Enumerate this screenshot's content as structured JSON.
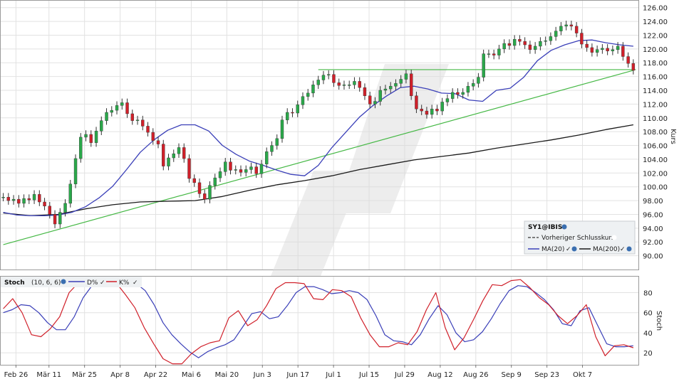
{
  "chart_data": [
    {
      "type": "candlestick",
      "title": "SY1@IBIS",
      "ylabel": "Kurs",
      "ylim": [
        88,
        127
      ],
      "y_ticks": [
        "90.00",
        "92.00",
        "94.00",
        "96.00",
        "98.00",
        "100.00",
        "102.00",
        "104.00",
        "106.00",
        "108.00",
        "110.00",
        "112.00",
        "114.00",
        "116.00",
        "118.00",
        "120.00",
        "122.00",
        "124.00",
        "126.00"
      ],
      "x_ticks": [
        "Feb 26",
        "Mär 11",
        "Mär 25",
        "Apr 8",
        "Apr 22",
        "Mai 6",
        "Mai 20",
        "Jun 3",
        "Jun 17",
        "Jul 1",
        "Jul 15",
        "Jul 29",
        "Aug 12",
        "Aug 26",
        "Sep 9",
        "Sep 23",
        "Okt 7"
      ],
      "x_tick_days": [
        5,
        18,
        32,
        46,
        60,
        74,
        88,
        102,
        116,
        130,
        144,
        158,
        172,
        186,
        200,
        214,
        228
      ],
      "x_range_days": [
        -1,
        250
      ],
      "closes": [
        98.5,
        98.0,
        98.2,
        97.6,
        98.3,
        98.1,
        98.9,
        97.8,
        97.2,
        96.0,
        94.6,
        96.3,
        97.6,
        100.4,
        104.1,
        107.2,
        107.6,
        106.4,
        108.1,
        109.6,
        110.8,
        111.1,
        111.8,
        112.2,
        110.6,
        109.6,
        109.7,
        108.8,
        107.9,
        106.7,
        106.2,
        103.0,
        104.2,
        104.8,
        105.7,
        104.1,
        101.2,
        100.6,
        99.0,
        98.2,
        100.2,
        101.3,
        102.2,
        103.6,
        102.4,
        102.5,
        102.1,
        102.5,
        102.9,
        101.9,
        103.3,
        105.1,
        106.0,
        107.0,
        109.7,
        110.8,
        110.7,
        111.9,
        113.1,
        113.6,
        114.8,
        115.5,
        116.2,
        116.3,
        115.1,
        114.7,
        114.8,
        114.8,
        115.3,
        114.4,
        113.2,
        112.0,
        112.4,
        114.0,
        114.2,
        114.6,
        115.0,
        115.6,
        116.4,
        113.2,
        111.3,
        111.0,
        110.5,
        111.3,
        111.0,
        112.3,
        112.8,
        113.7,
        113.4,
        113.7,
        114.6,
        115.0,
        115.9,
        119.3,
        119.3,
        119.1,
        120.0,
        120.8,
        120.5,
        121.4,
        121.1,
        120.6,
        119.9,
        120.4,
        121.1,
        121.2,
        121.8,
        122.6,
        123.3,
        123.5,
        123.3,
        122.3,
        120.7,
        120.2,
        119.5,
        119.9,
        120.1,
        119.7,
        119.9,
        120.4,
        118.9,
        117.9,
        116.9
      ],
      "ma20": [
        96.3,
        95.9,
        95.8,
        95.8,
        95.9,
        96.3,
        97.1,
        98.4,
        100.1,
        102.5,
        105.0,
        106.8,
        108.2,
        109.0,
        109.0,
        108.1,
        106.0,
        104.7,
        103.7,
        103.1,
        102.4,
        101.8,
        101.6,
        103.1,
        105.7,
        107.9,
        110.1,
        111.8,
        113.2,
        114.4,
        114.6,
        114.2,
        113.6,
        113.5,
        112.6,
        112.4,
        114.0,
        114.3,
        115.9,
        118.3,
        119.8,
        120.6,
        121.2,
        121.3,
        120.9,
        120.6,
        120.4
      ],
      "ma200": [
        96.2,
        95.8,
        96.0,
        96.8,
        97.4,
        97.8,
        97.9,
        98.0,
        98.6,
        99.5,
        100.3,
        100.9,
        101.6,
        102.5,
        103.2,
        103.9,
        104.4,
        104.9,
        105.6,
        106.2,
        106.8,
        107.5,
        108.3,
        109.0
      ],
      "support_line": {
        "from": [
          0,
          91.6
        ],
        "to": [
          248,
          116.9
        ]
      },
      "resistance_line": {
        "from": [
          124,
          117.0
        ],
        "to": [
          249,
          117.0
        ]
      },
      "legend": {
        "title": "SY1@IBIS",
        "prev_close_label": "Vorheriger Schlusskurs",
        "ma20_label": "MA(20)",
        "ma200_label": "MA(200)",
        "colors": {
          "ma20": "#3a3fb8",
          "ma200": "#1a1a1a",
          "prev_close": "#555555"
        }
      },
      "colors": {
        "up": "#2aa84a",
        "down": "#d0202a",
        "ma20": "#3a3fb8",
        "ma200": "#1a1a1a",
        "trend": "#45b845"
      }
    },
    {
      "type": "line",
      "title": "Stoch",
      "params": "(10, 6, 6)",
      "ylabel": "Stoch",
      "ylim": [
        8,
        96
      ],
      "y_ticks": [
        "20",
        "40",
        "60",
        "80"
      ],
      "series": [
        {
          "name": "D%",
          "color": "#3a3fb8",
          "values": [
            60,
            63,
            68,
            67,
            60,
            50,
            43,
            43,
            56,
            75,
            87,
            91,
            91,
            92,
            91,
            89,
            82,
            68,
            50,
            38,
            29,
            21,
            15,
            21,
            25,
            28,
            33,
            46,
            59,
            61,
            54,
            56,
            67,
            80,
            86,
            86,
            83,
            79,
            80,
            82,
            80,
            73,
            57,
            38,
            32,
            31,
            28,
            38,
            54,
            67,
            58,
            40,
            31,
            33,
            41,
            54,
            69,
            82,
            87,
            86,
            80,
            73,
            63,
            49,
            47,
            62,
            65,
            47,
            29,
            26,
            26,
            27
          ]
        },
        {
          "name": "K%",
          "color": "#d0202a",
          "values": [
            64,
            74,
            60,
            38,
            36,
            44,
            56,
            80,
            90,
            89,
            88,
            92,
            90,
            78,
            65,
            45,
            29,
            14,
            9,
            9,
            19,
            26,
            30,
            32,
            55,
            62,
            47,
            53,
            67,
            84,
            90,
            90,
            89,
            74,
            73,
            83,
            82,
            76,
            55,
            38,
            26,
            26,
            30,
            28,
            41,
            63,
            80,
            45,
            23,
            35,
            53,
            72,
            88,
            87,
            92,
            93,
            85,
            75,
            68,
            57,
            49,
            57,
            68,
            36,
            17,
            27,
            28,
            25
          ]
        }
      ]
    }
  ]
}
